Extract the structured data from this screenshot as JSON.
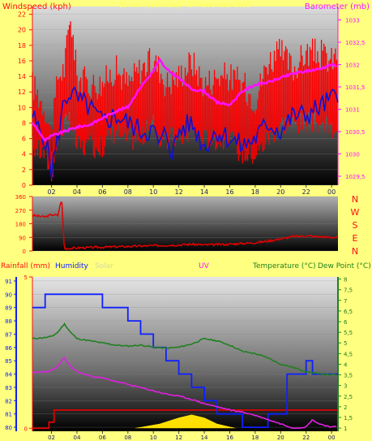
{
  "panel_top": {
    "left_title": "Windspeed (kph)",
    "subtitle": "25 Nov (yesterday) - 17 November 2006",
    "right_title": "Barometer (mb)"
  },
  "panel_mid": {
    "compass": [
      "N",
      "W",
      "S",
      "E",
      "N"
    ]
  },
  "panel_bottom": {
    "legend_rain": "Rainfall (mm)",
    "legend_humidity": "Humidity",
    "legend_solar": "Solar",
    "legend_uv": "UV",
    "legend_temp": "Temperature (°C)",
    "legend_dew": "Dew Point (°C)"
  },
  "colors": {
    "wind": "#ff0000",
    "wind_avg": "#1010d0",
    "barometer": "#ff10ff",
    "direction": "#e00000",
    "humidity": "#1020ff",
    "temperature": "#208020",
    "dewpoint": "#e020e0",
    "rain": "#e00000",
    "solar": "#ffe000",
    "uv": "#8b0000"
  },
  "chart_data": [
    {
      "type": "line",
      "x_label_ticks": [
        "02",
        "04",
        "06",
        "08",
        "10",
        "12",
        "14",
        "16",
        "18",
        "20",
        "22",
        "00"
      ],
      "x_range_hours": [
        0.5,
        24.5
      ],
      "left_axis": {
        "ticks": [
          "0",
          "2",
          "4",
          "6",
          "8",
          "10",
          "12",
          "14",
          "16",
          "18",
          "20",
          "22"
        ],
        "ylim": [
          0,
          23
        ]
      },
      "right_axis": {
        "ticks": [
          "1029,5",
          "1030",
          "1030,5",
          "1031",
          "1031,5",
          "1032",
          "1032,5",
          "1033"
        ],
        "ylim": [
          1029.3,
          1033.3
        ]
      },
      "series": [
        {
          "name": "Windspeed (kph)",
          "axis": "left",
          "x": [
            0.5,
            1.5,
            2.0,
            2.5,
            3.0,
            3.5,
            4.0,
            5.0,
            6.0,
            7.0,
            8.0,
            9.0,
            10.0,
            10.5,
            11.0,
            12.0,
            13.0,
            14.0,
            15.0,
            16.0,
            17.0,
            18.0,
            19.0,
            20.0,
            21.0,
            22.0,
            23.0,
            24.0,
            24.5
          ],
          "y": [
            13,
            10,
            6,
            14,
            15,
            22,
            14,
            13,
            13,
            15,
            13,
            15,
            16,
            15,
            13,
            14,
            16,
            13,
            14,
            14,
            13,
            11,
            16,
            17,
            15,
            17,
            17,
            16,
            17
          ],
          "y_min": [
            5,
            4,
            1.5,
            6,
            8,
            8,
            5,
            5,
            5,
            7,
            6,
            6,
            8,
            6,
            6,
            6,
            7,
            6,
            6,
            6,
            4,
            4,
            6,
            8,
            8,
            8,
            8,
            7,
            8
          ]
        },
        {
          "name": "Average windspeed (kph)",
          "axis": "left",
          "x": [
            0.5,
            1.0,
            1.5,
            2.0,
            2.5,
            3.0,
            3.5,
            4.0,
            5.0,
            6.0,
            7.0,
            8.0,
            9.0,
            10.0,
            10.5,
            11.0,
            11.5,
            12.0,
            13.0,
            14.0,
            15.0,
            16.0,
            17.0,
            18.0,
            19.0,
            20.0,
            21.0,
            22.0,
            23.0,
            24.0,
            24.5
          ],
          "y": [
            9,
            7,
            6,
            2,
            6,
            11,
            12,
            11,
            10,
            8,
            9,
            8,
            7,
            7,
            5,
            7,
            4,
            7,
            8,
            5,
            7,
            6,
            5,
            6,
            8,
            7,
            9,
            9,
            10,
            11,
            12
          ]
        },
        {
          "name": "Barometer (mb)",
          "axis": "right",
          "x": [
            0.5,
            1.0,
            1.5,
            2.0,
            2.5,
            3.0,
            4.0,
            5.0,
            6.0,
            7.0,
            8.0,
            9.0,
            10.0,
            10.5,
            11.0,
            12.0,
            13.0,
            14.0,
            15.0,
            16.0,
            17.0,
            18.0,
            19.0,
            20.0,
            21.0,
            22.0,
            23.0,
            24.0,
            24.5
          ],
          "y": [
            1030.7,
            1030.5,
            1030.3,
            1030.4,
            1030.45,
            1030.5,
            1030.6,
            1030.65,
            1030.8,
            1030.95,
            1031.05,
            1031.5,
            1031.85,
            1032.1,
            1031.9,
            1031.7,
            1031.45,
            1031.4,
            1031.15,
            1031.1,
            1031.4,
            1031.55,
            1031.6,
            1031.7,
            1031.8,
            1031.85,
            1031.9,
            1032.0,
            1031.95
          ]
        }
      ]
    },
    {
      "type": "line",
      "x_label_ticks": [
        "02",
        "04",
        "06",
        "08",
        "10",
        "12",
        "14",
        "16",
        "18",
        "20",
        "22",
        "00"
      ],
      "y_ticks": [
        "0",
        "90",
        "180",
        "270",
        "360"
      ],
      "ylim": [
        0,
        360
      ],
      "series": [
        {
          "name": "Wind direction (°)",
          "x": [
            0.5,
            1.0,
            1.5,
            2.0,
            2.5,
            2.8,
            3.0,
            4.0,
            6.0,
            8.0,
            10.0,
            12.0,
            13.0,
            14.0,
            16.0,
            18.0,
            19.0,
            20.0,
            21.0,
            22.0,
            23.0,
            24.0,
            24.5
          ],
          "y": [
            235,
            230,
            225,
            240,
            235,
            350,
            15,
            20,
            25,
            30,
            35,
            40,
            45,
            40,
            45,
            55,
            65,
            80,
            95,
            100,
            95,
            90,
            90
          ]
        }
      ]
    },
    {
      "type": "line",
      "x_label_ticks": [
        "02",
        "04",
        "06",
        "08",
        "10",
        "12",
        "14",
        "16",
        "18",
        "20",
        "22",
        "00"
      ],
      "humidity_axis": {
        "ticks": [
          "80",
          "81",
          "82",
          "83",
          "84",
          "85",
          "86",
          "87",
          "88",
          "89",
          "90",
          "91"
        ],
        "ylim": [
          79.7,
          91.3
        ]
      },
      "rain_axis": {
        "ticks": [
          "0",
          "5"
        ],
        "ylim": [
          -0.1,
          5
        ]
      },
      "temperature_axis": {
        "ticks": [
          "1",
          "1,5",
          "2",
          "2,5",
          "3",
          "3,5",
          "4",
          "4,5",
          "5",
          "5,5",
          "6",
          "6,5",
          "7",
          "7,5",
          "8"
        ],
        "ylim": [
          0.85,
          8.1
        ]
      },
      "series": [
        {
          "name": "Humidity",
          "x": [
            0.5,
            1.5,
            1.5,
            2.0,
            2.0,
            6.0,
            6.0,
            8.0,
            8.0,
            9.0,
            9.0,
            10.0,
            10.0,
            11.0,
            11.0,
            12.0,
            12.0,
            13.0,
            13.0,
            14.0,
            14.0,
            15.0,
            15.0,
            17.0,
            17.0,
            19.0,
            19.0,
            20.5,
            20.5,
            22.0,
            22.0,
            22.5,
            22.5,
            24.5
          ],
          "y": [
            89,
            89,
            90,
            90,
            90,
            90,
            89,
            89,
            88,
            88,
            87,
            87,
            86,
            86,
            85,
            85,
            84,
            84,
            83,
            83,
            82,
            82,
            81,
            81,
            80,
            80,
            81,
            81,
            84,
            84,
            85,
            85,
            84,
            84
          ]
        },
        {
          "name": "Temperature (°C)",
          "x": [
            0.5,
            1.5,
            2.0,
            2.5,
            3.0,
            3.5,
            4.0,
            5.0,
            6.0,
            7.0,
            8.0,
            9.0,
            10.0,
            11.0,
            12.0,
            13.0,
            14.0,
            15.0,
            16.0,
            17.0,
            18.0,
            19.0,
            20.0,
            21.0,
            22.0,
            23.0,
            24.0,
            24.5
          ],
          "y": [
            5.2,
            5.25,
            5.3,
            5.5,
            5.9,
            5.5,
            5.2,
            5.1,
            5.0,
            4.9,
            4.85,
            4.9,
            4.8,
            4.75,
            4.8,
            4.95,
            5.2,
            5.1,
            4.9,
            4.6,
            4.5,
            4.3,
            4.0,
            3.85,
            3.65,
            3.55,
            3.5,
            3.5
          ]
        },
        {
          "name": "Dew Point (°C)",
          "x": [
            0.5,
            1.5,
            2.0,
            2.5,
            3.0,
            3.5,
            4.0,
            5.0,
            6.0,
            7.0,
            8.0,
            9.0,
            10.0,
            11.0,
            12.0,
            13.0,
            14.0,
            15.0,
            16.0,
            17.0,
            18.0,
            19.0,
            20.0,
            21.0,
            22.0,
            22.5,
            23.0,
            24.0,
            24.5
          ],
          "y": [
            3.6,
            3.65,
            3.7,
            3.9,
            4.3,
            3.9,
            3.65,
            3.45,
            3.35,
            3.2,
            3.05,
            2.9,
            2.75,
            2.6,
            2.5,
            2.35,
            2.15,
            2.0,
            1.85,
            1.75,
            1.6,
            1.4,
            1.2,
            1.0,
            1.05,
            1.4,
            1.2,
            1.05,
            1.05
          ]
        },
        {
          "name": "Rainfall (mm)",
          "x": [
            0.5,
            1.8,
            1.8,
            2.2,
            2.2,
            24.5
          ],
          "y": [
            0,
            0,
            0.2,
            0.2,
            0.6,
            0.6
          ]
        },
        {
          "name": "Solar",
          "x": [
            8.5,
            10.5,
            12.0,
            13.0,
            14.0,
            15.0,
            16.5
          ],
          "y": [
            0,
            0.15,
            0.35,
            0.45,
            0.35,
            0.15,
            0
          ]
        }
      ]
    }
  ]
}
